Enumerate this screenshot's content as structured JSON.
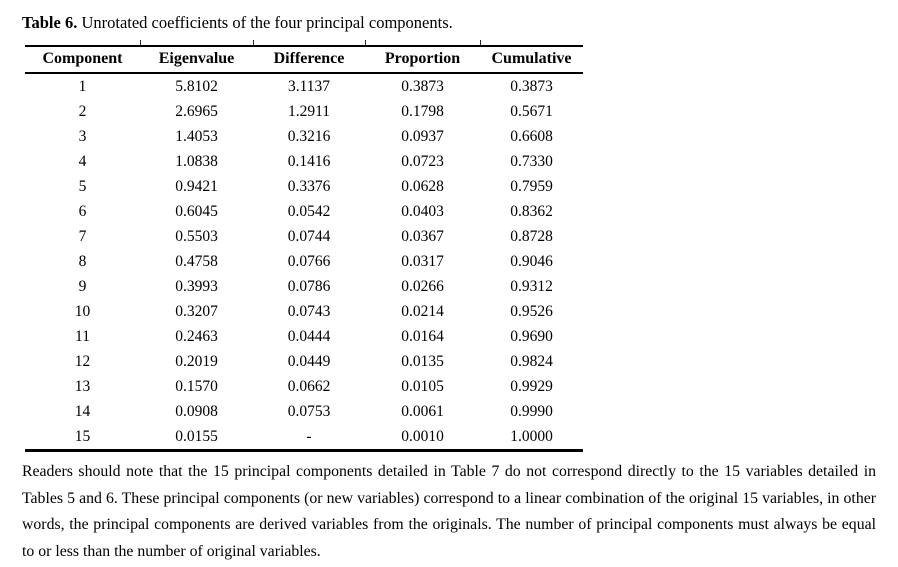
{
  "caption": {
    "label": "Table 6.",
    "text": "Unrotated coefficients of the four principal components."
  },
  "table": {
    "columns": [
      "Component",
      "Eigenvalue",
      "Difference",
      "Proportion",
      "Cumulative"
    ],
    "rows": [
      [
        "1",
        "5.8102",
        "3.1137",
        "0.3873",
        "0.3873"
      ],
      [
        "2",
        "2.6965",
        "1.2911",
        "0.1798",
        "0.5671"
      ],
      [
        "3",
        "1.4053",
        "0.3216",
        "0.0937",
        "0.6608"
      ],
      [
        "4",
        "1.0838",
        "0.1416",
        "0.0723",
        "0.7330"
      ],
      [
        "5",
        "0.9421",
        "0.3376",
        "0.0628",
        "0.7959"
      ],
      [
        "6",
        "0.6045",
        "0.0542",
        "0.0403",
        "0.8362"
      ],
      [
        "7",
        "0.5503",
        "0.0744",
        "0.0367",
        "0.8728"
      ],
      [
        "8",
        "0.4758",
        "0.0766",
        "0.0317",
        "0.9046"
      ],
      [
        "9",
        "0.3993",
        "0.0786",
        "0.0266",
        "0.9312"
      ],
      [
        "10",
        "0.3207",
        "0.0743",
        "0.0214",
        "0.9526"
      ],
      [
        "11",
        "0.2463",
        "0.0444",
        "0.0164",
        "0.9690"
      ],
      [
        "12",
        "0.2019",
        "0.0449",
        "0.0135",
        "0.9824"
      ],
      [
        "13",
        "0.1570",
        "0.0662",
        "0.0105",
        "0.9929"
      ],
      [
        "14",
        "0.0908",
        "0.0753",
        "0.0061",
        "0.9990"
      ],
      [
        "15",
        "0.0155",
        "-",
        "0.0010",
        "1.0000"
      ]
    ]
  },
  "note": "Readers should note that the 15 principal components detailed in Table 7 do not correspond directly to the 15 variables detailed in Tables 5 and 6. These principal components (or new variables) correspond to a linear combination of the original 15 variables, in other words, the principal components are derived variables from the originals. The number of principal components must always be equal to or less than the number of original variables."
}
